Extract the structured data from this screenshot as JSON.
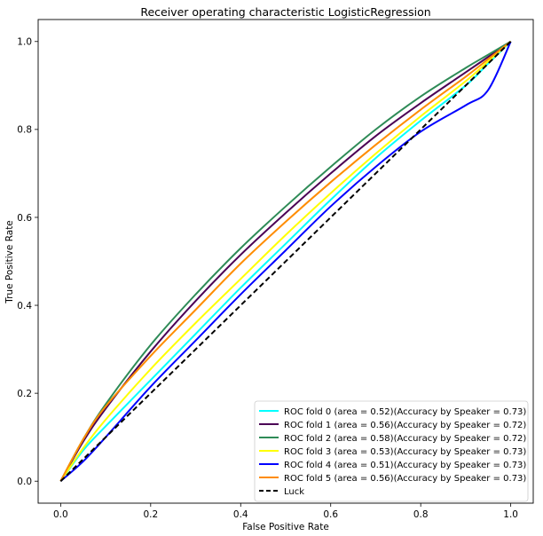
{
  "chart_data": {
    "type": "line",
    "title": "Receiver operating characteristic LogisticRegression",
    "xlabel": "False Positive Rate",
    "ylabel": "True Positive Rate",
    "xlim": [
      -0.05,
      1.05
    ],
    "ylim": [
      -0.05,
      1.05
    ],
    "xticks": [
      "0.0",
      "0.2",
      "0.4",
      "0.6",
      "0.8",
      "1.0"
    ],
    "yticks": [
      "0.0",
      "0.2",
      "0.4",
      "0.6",
      "0.8",
      "1.0"
    ],
    "grid": false,
    "legend_position": "lower right",
    "series": [
      {
        "name": "ROC fold 0 (area = 0.52)(Accuracy by Speaker = 0.73)",
        "color": "#00ffff",
        "style": "solid",
        "x": [
          0,
          0.05,
          0.1,
          0.2,
          0.3,
          0.4,
          0.5,
          0.6,
          0.7,
          0.8,
          0.9,
          0.95,
          1.0
        ],
        "y": [
          0,
          0.07,
          0.125,
          0.23,
          0.335,
          0.44,
          0.54,
          0.64,
          0.735,
          0.82,
          0.9,
          0.95,
          1.0
        ]
      },
      {
        "name": "ROC fold 1 (area = 0.56)(Accuracy by Speaker = 0.72)",
        "color": "#4b0055",
        "style": "solid",
        "x": [
          0,
          0.05,
          0.1,
          0.2,
          0.3,
          0.4,
          0.5,
          0.6,
          0.7,
          0.8,
          0.9,
          0.95,
          1.0
        ],
        "y": [
          0,
          0.09,
          0.165,
          0.295,
          0.41,
          0.515,
          0.61,
          0.7,
          0.785,
          0.86,
          0.93,
          0.965,
          1.0
        ]
      },
      {
        "name": "ROC fold 2 (area = 0.58)(Accuracy by Speaker = 0.72)",
        "color": "#2e8b57",
        "style": "solid",
        "x": [
          0,
          0.05,
          0.1,
          0.2,
          0.3,
          0.4,
          0.5,
          0.6,
          0.7,
          0.8,
          0.9,
          0.95,
          1.0
        ],
        "y": [
          0,
          0.095,
          0.175,
          0.31,
          0.425,
          0.53,
          0.625,
          0.715,
          0.8,
          0.875,
          0.94,
          0.97,
          1.0
        ]
      },
      {
        "name": "ROC fold 3 (area = 0.53)(Accuracy by Speaker = 0.73)",
        "color": "#ffff00",
        "style": "solid",
        "x": [
          0,
          0.05,
          0.1,
          0.2,
          0.3,
          0.4,
          0.5,
          0.6,
          0.7,
          0.8,
          0.9,
          0.95,
          1.0
        ],
        "y": [
          0,
          0.075,
          0.14,
          0.255,
          0.36,
          0.46,
          0.56,
          0.655,
          0.745,
          0.83,
          0.91,
          0.955,
          1.0
        ]
      },
      {
        "name": "ROC fold 4 (area = 0.51)(Accuracy by Speaker = 0.73)",
        "color": "#0000ff",
        "style": "solid",
        "x": [
          0,
          0.05,
          0.1,
          0.2,
          0.3,
          0.4,
          0.5,
          0.6,
          0.7,
          0.8,
          0.9,
          0.95,
          1.0
        ],
        "y": [
          0,
          0.045,
          0.1,
          0.215,
          0.32,
          0.425,
          0.525,
          0.625,
          0.715,
          0.795,
          0.855,
          0.89,
          1.0
        ]
      },
      {
        "name": "ROC fold 5 (area = 0.56)(Accuracy by Speaker = 0.73)",
        "color": "#ff8c00",
        "style": "solid",
        "x": [
          0,
          0.05,
          0.1,
          0.2,
          0.3,
          0.4,
          0.5,
          0.6,
          0.7,
          0.8,
          0.9,
          0.95,
          1.0
        ],
        "y": [
          0,
          0.095,
          0.17,
          0.285,
          0.39,
          0.495,
          0.59,
          0.68,
          0.765,
          0.845,
          0.92,
          0.96,
          1.0
        ]
      },
      {
        "name": "Luck",
        "color": "#000000",
        "style": "dashed",
        "x": [
          0,
          1
        ],
        "y": [
          0,
          1
        ]
      }
    ]
  }
}
